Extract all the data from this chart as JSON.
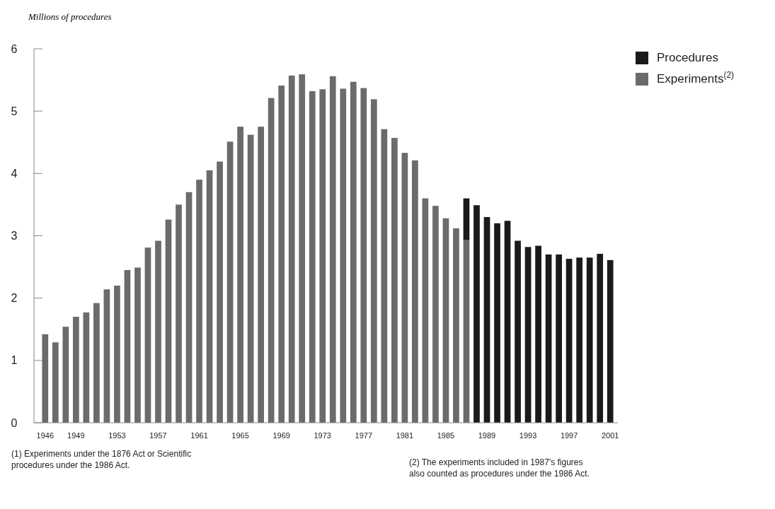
{
  "chart_data": {
    "type": "bar",
    "stacked": true,
    "ylabel": "Millions of procedures",
    "categories": [
      "1946",
      null,
      null,
      "1949",
      null,
      null,
      null,
      "1953",
      null,
      null,
      null,
      "1957",
      null,
      null,
      null,
      "1961",
      null,
      null,
      null,
      "1965",
      null,
      null,
      null,
      "1969",
      null,
      null,
      null,
      "1973",
      null,
      null,
      null,
      "1977",
      null,
      null,
      null,
      "1981",
      null,
      null,
      null,
      "1985",
      null,
      null,
      null,
      "1989",
      null,
      null,
      null,
      "1993",
      null,
      null,
      null,
      "1997",
      null,
      null,
      null,
      "2001"
    ],
    "series": [
      {
        "name": "Experiments$^{(2)}$",
        "color": "#6b6b6b",
        "values": [
          1.42,
          1.29,
          1.54,
          1.7,
          1.77,
          1.92,
          2.14,
          2.2,
          2.45,
          2.49,
          2.81,
          2.92,
          3.26,
          3.5,
          3.7,
          3.9,
          4.05,
          4.19,
          4.51,
          4.75,
          4.62,
          4.75,
          5.21,
          5.41,
          5.57,
          5.59,
          5.32,
          5.35,
          5.56,
          5.36,
          5.47,
          5.37,
          5.19,
          4.71,
          4.57,
          4.33,
          4.21,
          3.6,
          3.48,
          3.28,
          3.12,
          2.93,
          null,
          null,
          null,
          null,
          null,
          null,
          null,
          null,
          null,
          null,
          null,
          null,
          null,
          null
        ]
      },
      {
        "name": "Procedures",
        "color": "#1a1a1a",
        "values": [
          null,
          null,
          null,
          null,
          null,
          null,
          null,
          null,
          null,
          null,
          null,
          null,
          null,
          null,
          null,
          null,
          null,
          null,
          null,
          null,
          null,
          null,
          null,
          null,
          null,
          null,
          null,
          null,
          null,
          null,
          null,
          null,
          null,
          null,
          null,
          null,
          null,
          null,
          null,
          null,
          null,
          0.67,
          3.49,
          3.3,
          3.2,
          3.24,
          2.92,
          2.82,
          2.84,
          2.7,
          2.7,
          2.63,
          2.65,
          2.65,
          2.71,
          2.61
        ]
      }
    ],
    "ylim": [
      0,
      6
    ],
    "yticks": [
      0,
      1,
      2,
      3,
      4,
      5,
      6
    ],
    "legend": "top right",
    "annotations": [
      "(1) Experiments under the 1876 Act or Scientific procedures under the 1986 Act.",
      "(2) The experiments included in 1987's figures also counted as procedures under the 1986 Act."
    ]
  }
}
